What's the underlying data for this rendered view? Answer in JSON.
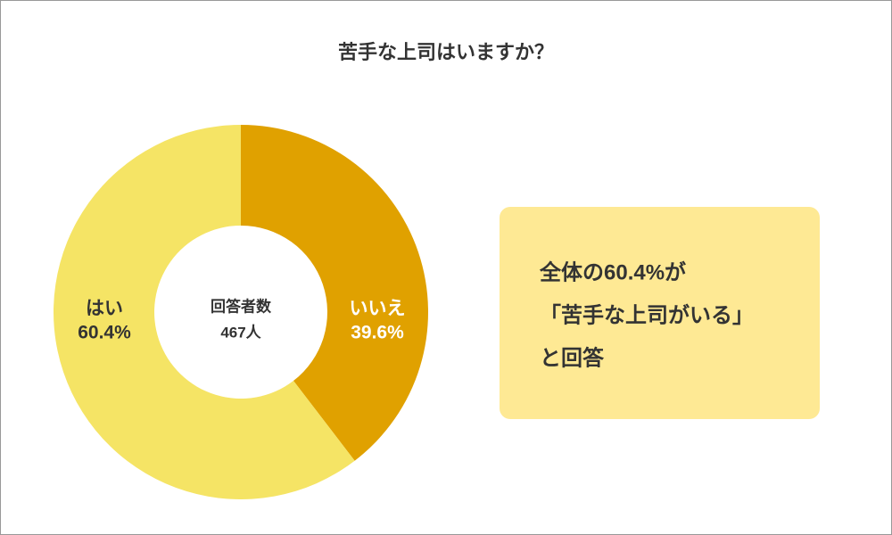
{
  "chart_data": {
    "type": "donut",
    "title": "苦手な上司はいますか？",
    "categories": [
      "いいえ",
      "はい"
    ],
    "values": [
      39.6,
      60.4
    ],
    "value_labels": [
      "39.6%",
      "60.4%"
    ],
    "colors": [
      "#e0a100",
      "#f5e465"
    ],
    "center_label": "回答者数",
    "center_value": "467人",
    "callout": [
      "全体の60.4%が",
      "「苦手な上司がいる」",
      "と回答"
    ]
  }
}
